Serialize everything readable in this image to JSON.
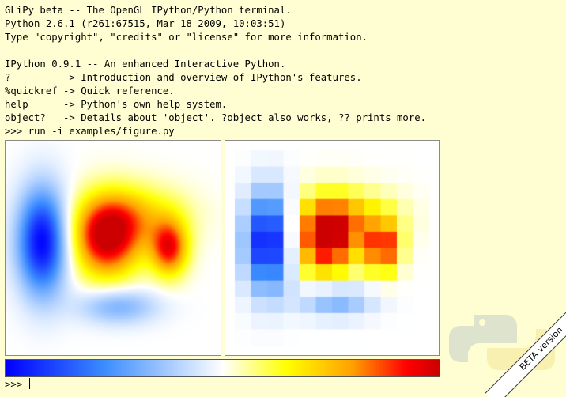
{
  "terminal": {
    "lines": [
      "GLiPy beta -- The OpenGL IPython/Python terminal.",
      "Python 2.6.1 (r261:67515, Mar 18 2009, 10:03:51)",
      "Type \"copyright\", \"credits\" or \"license\" for more information.",
      "",
      "IPython 0.9.1 -- An enhanced Interactive Python.",
      "?         -> Introduction and overview of IPython's features.",
      "%quickref -> Quick reference.",
      "help      -> Python's own help system.",
      "object?   -> Details about 'object'. ?object also works, ?? prints more.",
      ">>> run -i examples/figure.py"
    ],
    "prompt": ">>> "
  },
  "badge": {
    "label": "BETA version"
  },
  "logo": {
    "icon": "python-logo-icon"
  },
  "colormap": {
    "name": "blue-white-red",
    "stops": [
      "#0000ff",
      "#3b8cff",
      "#ffffff",
      "#ffff00",
      "#ffa000",
      "#ff0000",
      "#cc0000"
    ]
  },
  "plots": {
    "left": {
      "style": "smooth-interpolated"
    },
    "right": {
      "style": "pixelated-nearest",
      "grid": "12x12"
    }
  }
}
